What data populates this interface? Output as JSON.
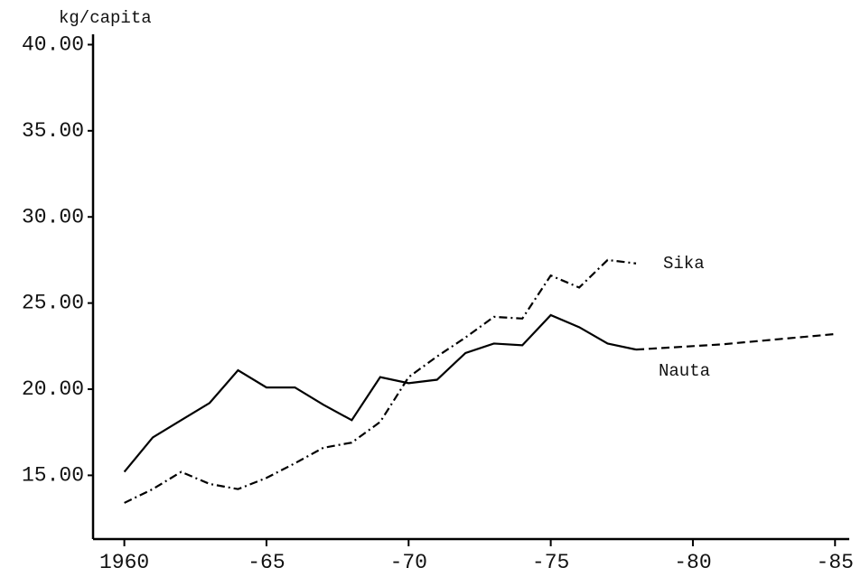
{
  "chart_data": {
    "type": "line",
    "y_axis_label": "kg/capita",
    "x": [
      1960,
      1961,
      1962,
      1963,
      1964,
      1965,
      1966,
      1967,
      1968,
      1969,
      1970,
      1971,
      1972,
      1973,
      1974,
      1975,
      1976,
      1977,
      1978,
      1979,
      1980,
      1981,
      1982,
      1983,
      1984,
      1985
    ],
    "series": [
      {
        "name": "Sika",
        "color": "#000000",
        "dash": "dashdot",
        "values": [
          13.4,
          14.2,
          15.2,
          14.5,
          14.2,
          14.85,
          15.7,
          16.6,
          16.9,
          18.1,
          20.7,
          21.9,
          23.0,
          24.2,
          24.1,
          26.6,
          25.9,
          27.5,
          27.3,
          null,
          null,
          null,
          null,
          null,
          null,
          null
        ]
      },
      {
        "name": "Nauta",
        "color": "#000000",
        "dash": "solid",
        "values": [
          15.2,
          17.2,
          18.2,
          19.2,
          21.1,
          20.1,
          20.1,
          19.1,
          18.2,
          20.7,
          20.35,
          20.55,
          22.1,
          22.65,
          22.55,
          24.3,
          23.6,
          22.65,
          22.3,
          null,
          null,
          null,
          null,
          null,
          null,
          null
        ]
      },
      {
        "color": "#000000",
        "dash": "dashed",
        "values": [
          null,
          null,
          null,
          null,
          null,
          null,
          null,
          null,
          null,
          null,
          null,
          null,
          null,
          null,
          null,
          null,
          null,
          null,
          22.3,
          22.4,
          22.5,
          22.6,
          22.75,
          22.9,
          23.05,
          23.2
        ]
      }
    ],
    "xlim": [
      1958.9,
      1985.5
    ],
    "xticks": [
      {
        "value": 1960,
        "label": "1960"
      },
      {
        "value": 1965,
        "label": "-65"
      },
      {
        "value": 1970,
        "label": "-70"
      },
      {
        "value": 1975,
        "label": "-75"
      },
      {
        "value": 1980,
        "label": "-80"
      },
      {
        "value": 1985,
        "label": "-85"
      }
    ],
    "ylim": [
      11.3,
      40.6
    ],
    "yticks": [
      {
        "value": 15,
        "label": "15.00"
      },
      {
        "value": 20,
        "label": "20.00"
      },
      {
        "value": 25,
        "label": "25.00"
      },
      {
        "value": 30,
        "label": "30.00"
      },
      {
        "value": 35,
        "label": "35.00"
      },
      {
        "value": 40,
        "label": "40.00"
      }
    ],
    "grid": false
  }
}
